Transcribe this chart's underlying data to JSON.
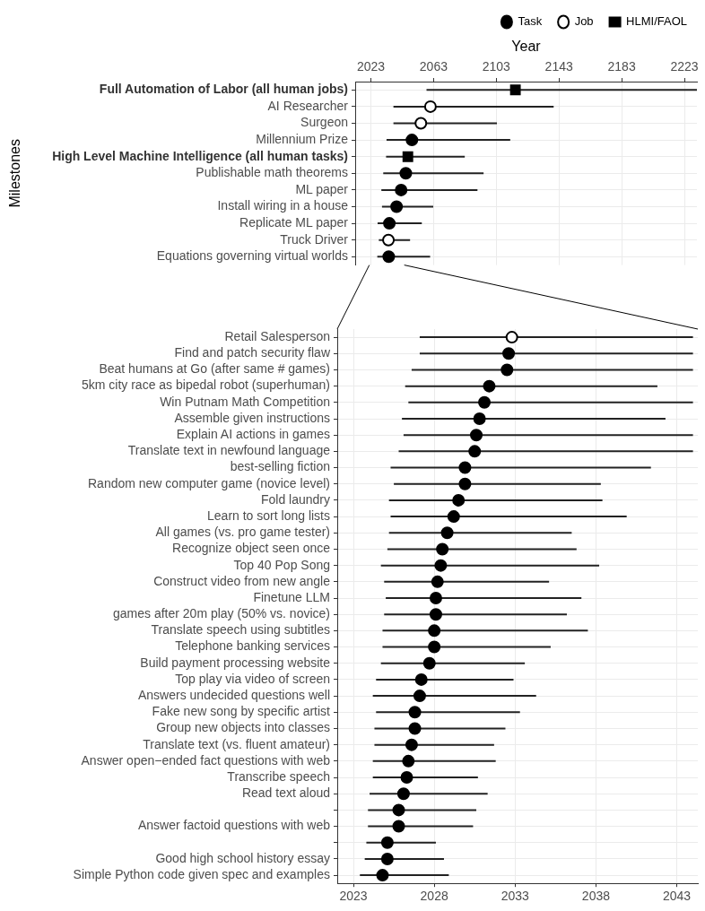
{
  "chart_data": [
    {
      "type": "scatter",
      "orientation": "horizontal",
      "xlabel": "Year",
      "ylabel": "Milestones",
      "categories": [
        "Full Automation of Labor (all human jobs)",
        "AI Researcher",
        "Surgeon",
        "Millennium Prize",
        "High Level Machine Intelligence (all human tasks)",
        "Publishable math theorems",
        "ML paper",
        "Install wiring in a house",
        "Replicate ML paper",
        "Truck Driver",
        "Equations governing virtual worlds"
      ],
      "series": [
        {
          "name": "Task",
          "color": "#000000",
          "marker": "circle",
          "values": [
            null,
            null,
            null,
            2049.2,
            null,
            2045.3,
            2042.3,
            2039.4,
            2034.8,
            null,
            2034.4
          ],
          "errors": [
            null,
            null,
            null,
            [
              2033.0,
              2111.9
            ],
            null,
            [
              2030.9,
              2094.9
            ],
            [
              2029.7,
              2091.0
            ],
            [
              2030.1,
              2062.8
            ],
            [
              2027.3,
              2055.5
            ],
            null,
            [
              2027.1,
              2060.8
            ]
          ]
        },
        {
          "name": "Job",
          "color": "#ffffff",
          "marker": "circle",
          "values": [
            null,
            2061.0,
            2054.9,
            null,
            null,
            null,
            null,
            null,
            null,
            2034.2,
            null
          ],
          "errors": [
            null,
            [
              2037.4,
              2139.6
            ],
            [
              2037.4,
              2103.4
            ],
            null,
            null,
            null,
            null,
            null,
            null,
            [
              2028.1,
              2048.0
            ],
            null
          ]
        },
        {
          "name": "HLMI/FAOL",
          "color": "#000000",
          "marker": "square",
          "values": [
            2115.2,
            null,
            null,
            null,
            2046.6,
            null,
            null,
            null,
            null,
            null,
            null
          ],
          "errors": [
            [
              2058.5,
              2231
            ],
            null,
            null,
            null,
            [
              2032.7,
              2082.9
            ],
            null,
            null,
            null,
            null,
            null,
            null
          ]
        }
      ],
      "xlim": [
        2013,
        2231
      ],
      "xticks": [
        2023,
        2063,
        2103,
        2143,
        2183,
        2223
      ],
      "grid": true,
      "legend": "top right"
    },
    {
      "type": "scatter",
      "orientation": "horizontal",
      "categories": [
        "Retail Salesperson",
        "Find and patch security flaw",
        "Beat humans at Go (after same # games)",
        "5km city race as bipedal robot (superhuman)",
        "Win Putnam Math Competition",
        "Assemble given instructions",
        "Explain AI actions in games",
        "Translate text in newfound language",
        "best-selling fiction",
        "Random new computer game (novice level)",
        "Fold laundry",
        "Learn to sort long lists",
        "All games (vs. pro game tester)",
        "Recognize object seen once",
        "Top 40 Pop Song",
        "Construct video from new angle",
        "Finetune LLM",
        "games after 20m play (50% vs. novice)",
        "Translate speech using subtitles",
        "Telephone banking services",
        "Build payment processing website",
        "Top play via video of screen",
        "Answers undecided questions well",
        "Fake new song by specific artist",
        "Group new objects into classes",
        "Translate text (vs. fluent amateur)",
        "Answer open−ended fact questions with web",
        "Transcribe speech",
        "Read text aloud",
        null,
        "Answer factoid questions with web",
        null,
        "Good high school history essay",
        "Simple Python code given spec and examples"
      ],
      "series": [
        {
          "color": "#000000",
          "marker": "circle",
          "values": [
            null,
            2032.6,
            2032.5,
            2031.4,
            2031.1,
            2030.8,
            2030.6,
            2030.5,
            2029.9,
            2029.9,
            2029.5,
            2029.2,
            2028.8,
            2028.5,
            2028.4,
            2028.2,
            2028.1,
            2028.1,
            2028.0,
            2028.0,
            2027.7,
            2027.2,
            2027.1,
            2026.8,
            2026.8,
            2026.6,
            2026.4,
            2026.3,
            2026.1,
            2025.8,
            2025.8,
            2025.1,
            2025.1,
            2024.8
          ],
          "errors": [
            null,
            [
              2027.1,
              2044
            ],
            [
              2026.6,
              2044
            ],
            [
              2026.2,
              2041.8
            ],
            [
              2026.4,
              2044
            ],
            [
              2026.0,
              2042.3
            ],
            [
              2026.1,
              2044
            ],
            [
              2025.8,
              2044
            ],
            [
              2025.3,
              2041.4
            ],
            [
              2025.5,
              2038.3
            ],
            [
              2025.2,
              2038.4
            ],
            [
              2025.3,
              2039.9
            ],
            [
              2025.2,
              2036.5
            ],
            [
              2025.1,
              2036.8
            ],
            [
              2024.7,
              2038.2
            ],
            [
              2024.9,
              2035.1
            ],
            [
              2025.0,
              2037.1
            ],
            [
              2024.9,
              2036.2
            ],
            [
              2024.8,
              2037.5
            ],
            [
              2024.8,
              2035.2
            ],
            [
              2024.7,
              2033.6
            ],
            [
              2024.4,
              2032.9
            ],
            [
              2024.2,
              2034.3
            ],
            [
              2024.4,
              2033.3
            ],
            [
              2024.3,
              2032.4
            ],
            [
              2024.3,
              2031.7
            ],
            [
              2024.2,
              2031.8
            ],
            [
              2024.2,
              2030.7
            ],
            [
              2024.0,
              2031.3
            ],
            [
              2023.9,
              2030.6
            ],
            [
              2023.9,
              2030.4
            ],
            [
              2023.8,
              2028.1
            ],
            [
              2023.7,
              2028.6
            ],
            [
              2023.4,
              2028.9
            ]
          ]
        },
        {
          "color": "#ffffff",
          "marker": "circle",
          "values": [
            2032.8,
            null,
            null,
            null,
            null,
            null,
            null,
            null,
            null,
            null,
            null,
            null,
            null,
            null,
            null,
            null,
            null,
            null,
            null,
            null,
            null,
            null,
            null,
            null,
            null,
            null,
            null,
            null,
            null,
            null,
            null,
            null,
            null,
            null
          ],
          "errors": [
            [
              2027.1,
              2044
            ],
            null,
            null,
            null,
            null,
            null,
            null,
            null,
            null,
            null,
            null,
            null,
            null,
            null,
            null,
            null,
            null,
            null,
            null,
            null,
            null,
            null,
            null,
            null,
            null,
            null,
            null,
            null,
            null,
            null,
            null,
            null,
            null,
            null
          ]
        }
      ],
      "xlim": [
        2022,
        2044.3
      ],
      "xticks": [
        2023,
        2028,
        2033,
        2038,
        2043
      ],
      "grid": true
    }
  ]
}
